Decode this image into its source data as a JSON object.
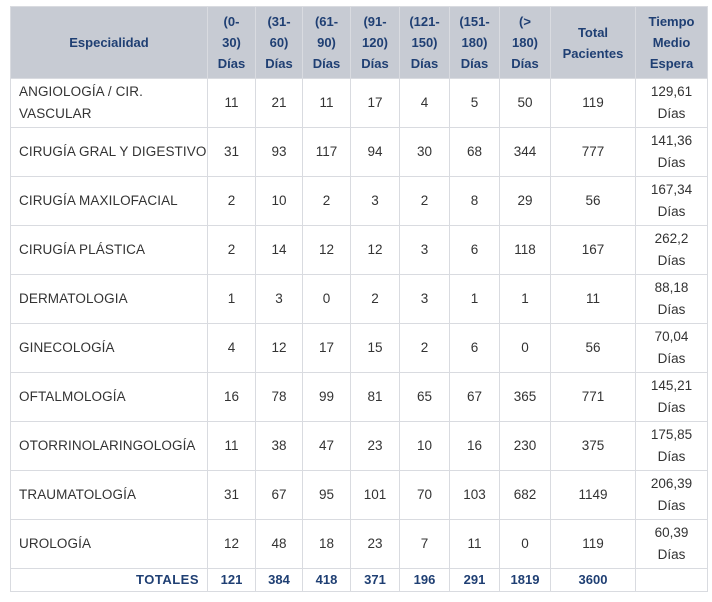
{
  "headers": {
    "especialidad": "Especialidad",
    "r0_30": "(0-\n30)\nDías",
    "r31_60": "(31-\n60)\nDías",
    "r61_90": "(61-\n90)\nDías",
    "r91_120": "(91-\n120)\nDías",
    "r121_150": "(121-\n150)\nDías",
    "r151_180": "(151-\n180)\nDías",
    "r180": "(>\n180)\nDías",
    "total": "Total\nPacientes",
    "tiempo": "Tiempo\nMedio\nEspera"
  },
  "rows": [
    {
      "esp": "ANGIOLOGÍA / CIR. VASCULAR",
      "v": [
        "11",
        "21",
        "11",
        "17",
        "4",
        "5",
        "50"
      ],
      "total": "119",
      "tiempo": "129,61\nDías"
    },
    {
      "esp": "CIRUGÍA GRAL Y DIGESTIVO",
      "v": [
        "31",
        "93",
        "117",
        "94",
        "30",
        "68",
        "344"
      ],
      "total": "777",
      "tiempo": "141,36\nDías"
    },
    {
      "esp": "CIRUGÍA MAXILOFACIAL",
      "v": [
        "2",
        "10",
        "2",
        "3",
        "2",
        "8",
        "29"
      ],
      "total": "56",
      "tiempo": "167,34\nDías"
    },
    {
      "esp": "CIRUGÍA PLÁSTICA",
      "v": [
        "2",
        "14",
        "12",
        "12",
        "3",
        "6",
        "118"
      ],
      "total": "167",
      "tiempo": "262,2\nDías"
    },
    {
      "esp": "DERMATOLOGIA",
      "v": [
        "1",
        "3",
        "0",
        "2",
        "3",
        "1",
        "1"
      ],
      "total": "11",
      "tiempo": "88,18\nDías"
    },
    {
      "esp": "GINECOLOGÍA",
      "v": [
        "4",
        "12",
        "17",
        "15",
        "2",
        "6",
        "0"
      ],
      "total": "56",
      "tiempo": "70,04\nDías"
    },
    {
      "esp": "OFTALMOLOGÍA",
      "v": [
        "16",
        "78",
        "99",
        "81",
        "65",
        "67",
        "365"
      ],
      "total": "771",
      "tiempo": "145,21\nDías"
    },
    {
      "esp": "OTORRINOLARINGOLOGÍA",
      "v": [
        "11",
        "38",
        "47",
        "23",
        "10",
        "16",
        "230"
      ],
      "total": "375",
      "tiempo": "175,85\nDías"
    },
    {
      "esp": "TRAUMATOLOGÍA",
      "v": [
        "31",
        "67",
        "95",
        "101",
        "70",
        "103",
        "682"
      ],
      "total": "1149",
      "tiempo": "206,39\nDías"
    },
    {
      "esp": "UROLOGÍA",
      "v": [
        "12",
        "48",
        "18",
        "23",
        "7",
        "11",
        "0"
      ],
      "total": "119",
      "tiempo": "60,39\nDías"
    }
  ],
  "totals": {
    "label": "TOTALES",
    "v": [
      "121",
      "384",
      "418",
      "371",
      "196",
      "291",
      "1819"
    ],
    "total": "3600",
    "tiempo": ""
  }
}
